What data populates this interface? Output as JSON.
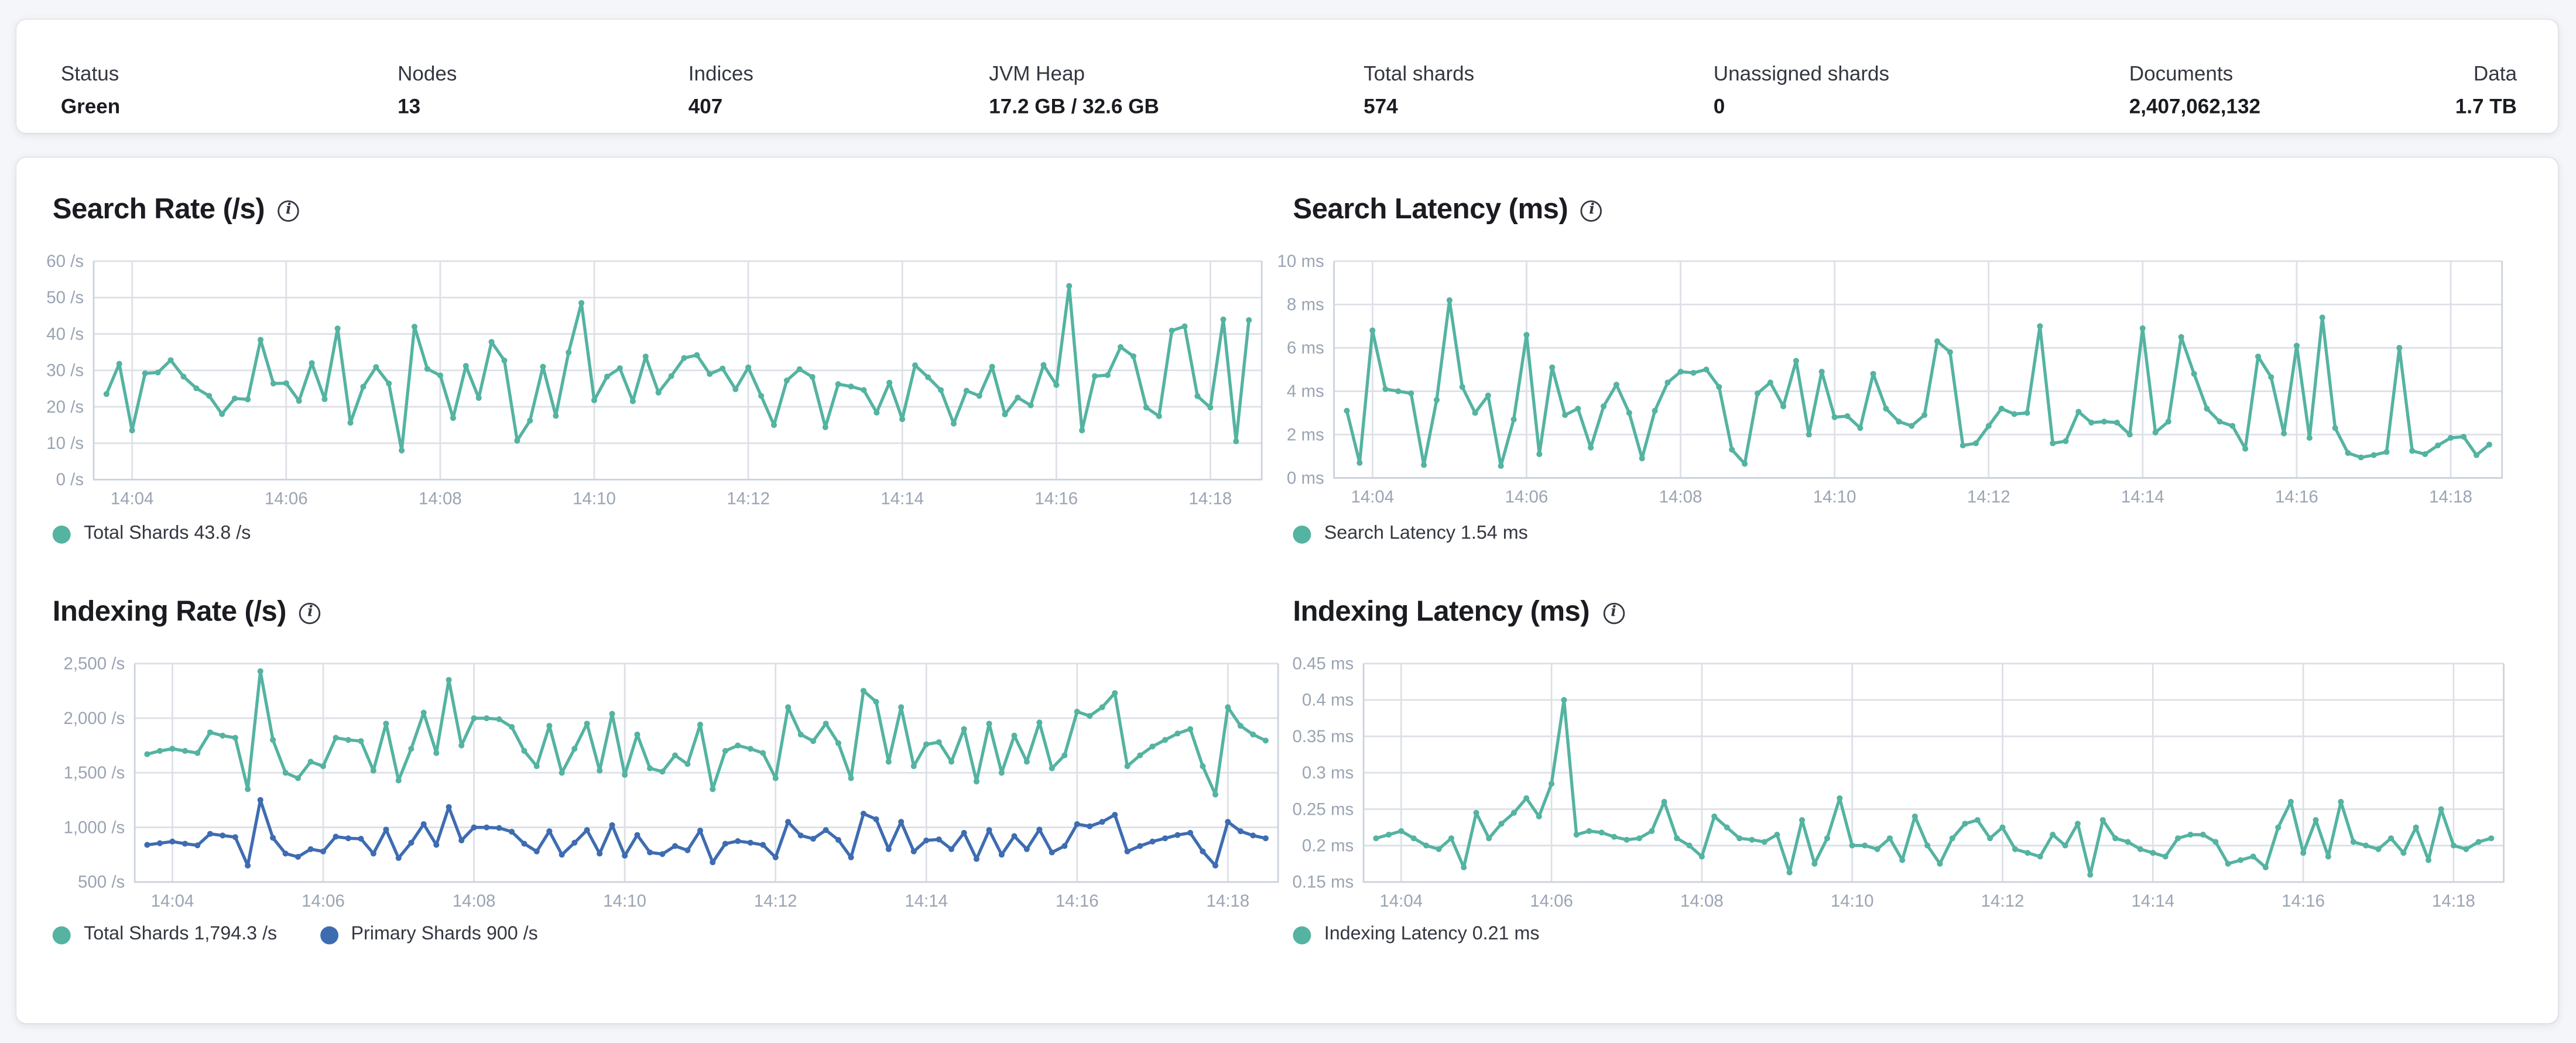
{
  "overview": {
    "stats": [
      {
        "label": "Status",
        "value": "Green"
      },
      {
        "label": "Nodes",
        "value": "13"
      },
      {
        "label": "Indices",
        "value": "407"
      },
      {
        "label": "JVM Heap",
        "value": "17.2 GB / 32.6 GB"
      },
      {
        "label": "Total shards",
        "value": "574"
      },
      {
        "label": "Unassigned shards",
        "value": "0"
      },
      {
        "label": "Documents",
        "value": "2,407,062,132"
      },
      {
        "label": "Data",
        "value": "1.7 TB"
      }
    ],
    "status_color": "#3aa795"
  },
  "colors": {
    "teal": "#54b3a1",
    "blue": "#3e6cb1",
    "grid": "#dde0e6",
    "plot_border": "#ccd3dc",
    "axis_text": "#9aa4b3"
  },
  "chart_data": [
    {
      "type": "line",
      "title": "Search Rate (/s)",
      "info_icon": "i",
      "ylabel": "/s",
      "ylim": [
        0,
        60
      ],
      "yticks": [
        {
          "v": 0,
          "label": "0 /s"
        },
        {
          "v": 10,
          "label": "10 /s"
        },
        {
          "v": 20,
          "label": "20 /s"
        },
        {
          "v": 30,
          "label": "30 /s"
        },
        {
          "v": 40,
          "label": "40 /s"
        },
        {
          "v": 50,
          "label": "50 /s"
        },
        {
          "v": 60,
          "label": "60 /s"
        }
      ],
      "x_start": "14:03:40",
      "x_interval_seconds": 10,
      "x_tick_labels": [
        "14:04",
        "14:06",
        "14:08",
        "14:10",
        "14:12",
        "14:14",
        "14:16",
        "14:18"
      ],
      "grid": true,
      "legend_position": "bottom",
      "series": [
        {
          "name": "Total Shards",
          "legend_label": "Total Shards 43.8 /s",
          "color": "#54b3a1",
          "values": [
            23.5,
            31.8,
            13.5,
            29.2,
            29.4,
            32.8,
            28.3,
            25.1,
            23.0,
            18.0,
            22.3,
            22.0,
            38.4,
            26.4,
            26.5,
            21.6,
            32.0,
            22.1,
            41.5,
            15.6,
            25.5,
            30.9,
            26.4,
            8.0,
            42.0,
            30.4,
            28.6,
            16.9,
            31.2,
            22.4,
            37.8,
            32.7,
            10.7,
            16.2,
            31.0,
            17.5,
            34.9,
            48.5,
            21.8,
            28.3,
            30.6,
            21.5,
            33.8,
            23.9,
            28.4,
            33.4,
            34.2,
            29.0,
            30.5,
            24.8,
            30.8,
            23.0,
            15.0,
            27.2,
            30.3,
            28.2,
            14.4,
            26.2,
            25.6,
            24.6,
            18.4,
            26.6,
            16.6,
            31.4,
            28.1,
            24.6,
            15.4,
            24.4,
            23.0,
            31.0,
            17.9,
            22.5,
            20.4,
            31.5,
            26.0,
            53.2,
            13.5,
            28.4,
            28.7,
            36.4,
            33.9,
            19.8,
            17.4,
            40.9,
            42.1,
            22.9,
            19.8,
            44.0,
            10.5,
            43.8
          ]
        }
      ]
    },
    {
      "type": "line",
      "title": "Search Latency (ms)",
      "info_icon": "i",
      "ylabel": "ms",
      "ylim": [
        0,
        10
      ],
      "yticks": [
        {
          "v": 0,
          "label": "0 ms"
        },
        {
          "v": 2,
          "label": "2 ms"
        },
        {
          "v": 4,
          "label": "4 ms"
        },
        {
          "v": 6,
          "label": "6 ms"
        },
        {
          "v": 8,
          "label": "8 ms"
        },
        {
          "v": 10,
          "label": "10 ms"
        }
      ],
      "x_start": "14:03:40",
      "x_interval_seconds": 10,
      "x_tick_labels": [
        "14:04",
        "14:06",
        "14:08",
        "14:10",
        "14:12",
        "14:14",
        "14:16",
        "14:18"
      ],
      "grid": true,
      "legend_position": "bottom",
      "series": [
        {
          "name": "Search Latency",
          "legend_label": "Search Latency 1.54 ms",
          "color": "#54b3a1",
          "values": [
            3.1,
            0.7,
            6.8,
            4.1,
            4.0,
            3.9,
            0.6,
            3.6,
            8.2,
            4.2,
            3.0,
            3.8,
            0.55,
            2.7,
            6.6,
            1.1,
            5.1,
            2.9,
            3.2,
            1.4,
            3.3,
            4.3,
            3.0,
            0.9,
            3.1,
            4.4,
            4.9,
            4.85,
            5.0,
            4.2,
            1.3,
            0.65,
            3.9,
            4.4,
            3.3,
            5.4,
            2.0,
            4.9,
            2.8,
            2.85,
            2.3,
            4.8,
            3.2,
            2.6,
            2.4,
            2.9,
            6.3,
            5.8,
            1.5,
            1.6,
            2.4,
            3.2,
            2.95,
            3.0,
            7.0,
            1.6,
            1.7,
            3.05,
            2.55,
            2.6,
            2.55,
            2.0,
            6.9,
            2.1,
            2.6,
            6.5,
            4.8,
            3.2,
            2.6,
            2.4,
            1.35,
            5.6,
            4.65,
            2.05,
            6.1,
            1.85,
            7.4,
            2.3,
            1.15,
            0.95,
            1.05,
            1.2,
            6.0,
            1.25,
            1.1,
            1.5,
            1.85,
            1.9,
            1.05,
            1.54
          ]
        }
      ]
    },
    {
      "type": "line",
      "title": "Indexing Rate (/s)",
      "info_icon": "i",
      "ylabel": "/s",
      "ylim": [
        500,
        2500
      ],
      "yticks": [
        {
          "v": 500,
          "label": "500 /s"
        },
        {
          "v": 1000,
          "label": "1,000 /s"
        },
        {
          "v": 1500,
          "label": "1,500 /s"
        },
        {
          "v": 2000,
          "label": "2,000 /s"
        },
        {
          "v": 2500,
          "label": "2,500 /s"
        }
      ],
      "x_start": "14:03:40",
      "x_interval_seconds": 10,
      "x_tick_labels": [
        "14:04",
        "14:06",
        "14:08",
        "14:10",
        "14:12",
        "14:14",
        "14:16",
        "14:18"
      ],
      "grid": true,
      "legend_position": "bottom",
      "series": [
        {
          "name": "Total Shards",
          "legend_label": "Total Shards 1,794.3 /s",
          "color": "#54b3a1",
          "values": [
            1670,
            1700,
            1720,
            1700,
            1680,
            1870,
            1840,
            1820,
            1350,
            2430,
            1800,
            1500,
            1450,
            1600,
            1560,
            1820,
            1800,
            1790,
            1520,
            1950,
            1430,
            1720,
            2050,
            1680,
            2350,
            1750,
            2000,
            2000,
            1990,
            1920,
            1700,
            1560,
            1930,
            1500,
            1720,
            1950,
            1520,
            2040,
            1480,
            1850,
            1540,
            1510,
            1660,
            1580,
            1940,
            1350,
            1700,
            1750,
            1720,
            1680,
            1450,
            2100,
            1850,
            1790,
            1950,
            1770,
            1450,
            2250,
            2150,
            1600,
            2100,
            1560,
            1760,
            1780,
            1600,
            1900,
            1420,
            1950,
            1500,
            1840,
            1600,
            1960,
            1540,
            1660,
            2060,
            2020,
            2100,
            2230,
            1560,
            1660,
            1740,
            1800,
            1860,
            1900,
            1560,
            1300,
            2100,
            1930,
            1850,
            1794.3
          ]
        },
        {
          "name": "Primary Shards",
          "legend_label": "Primary Shards 900 /s",
          "color": "#3e6cb1",
          "values": [
            840,
            855,
            870,
            850,
            835,
            940,
            925,
            910,
            650,
            1250,
            905,
            760,
            730,
            800,
            780,
            915,
            900,
            895,
            760,
            980,
            720,
            860,
            1030,
            840,
            1185,
            880,
            1000,
            1000,
            995,
            960,
            850,
            780,
            965,
            750,
            860,
            975,
            760,
            1020,
            740,
            930,
            770,
            755,
            830,
            790,
            970,
            680,
            850,
            875,
            860,
            840,
            725,
            1050,
            925,
            895,
            975,
            885,
            725,
            1125,
            1075,
            800,
            1050,
            780,
            880,
            890,
            800,
            950,
            710,
            975,
            750,
            920,
            800,
            980,
            770,
            830,
            1030,
            1010,
            1050,
            1115,
            780,
            830,
            870,
            900,
            930,
            950,
            780,
            650,
            1050,
            965,
            925,
            900
          ]
        }
      ]
    },
    {
      "type": "line",
      "title": "Indexing Latency (ms)",
      "info_icon": "i",
      "ylabel": "ms",
      "ylim": [
        0.15,
        0.45
      ],
      "yticks": [
        {
          "v": 0.15,
          "label": "0.15 ms"
        },
        {
          "v": 0.2,
          "label": "0.2 ms"
        },
        {
          "v": 0.25,
          "label": "0.25 ms"
        },
        {
          "v": 0.3,
          "label": "0.3 ms"
        },
        {
          "v": 0.35,
          "label": "0.35 ms"
        },
        {
          "v": 0.4,
          "label": "0.4 ms"
        },
        {
          "v": 0.45,
          "label": "0.45 ms"
        }
      ],
      "x_start": "14:03:40",
      "x_interval_seconds": 10,
      "x_tick_labels": [
        "14:04",
        "14:06",
        "14:08",
        "14:10",
        "14:12",
        "14:14",
        "14:16",
        "14:18"
      ],
      "grid": true,
      "legend_position": "bottom",
      "series": [
        {
          "name": "Indexing Latency",
          "legend_label": "Indexing Latency 0.21 ms",
          "color": "#54b3a1",
          "values": [
            0.21,
            0.215,
            0.22,
            0.21,
            0.2,
            0.195,
            0.21,
            0.17,
            0.245,
            0.21,
            0.23,
            0.245,
            0.265,
            0.24,
            0.285,
            0.4,
            0.215,
            0.22,
            0.218,
            0.212,
            0.208,
            0.21,
            0.22,
            0.26,
            0.21,
            0.2,
            0.185,
            0.24,
            0.225,
            0.21,
            0.208,
            0.205,
            0.215,
            0.163,
            0.235,
            0.175,
            0.21,
            0.265,
            0.2,
            0.2,
            0.195,
            0.21,
            0.18,
            0.24,
            0.2,
            0.175,
            0.21,
            0.23,
            0.235,
            0.21,
            0.225,
            0.195,
            0.19,
            0.185,
            0.215,
            0.2,
            0.23,
            0.16,
            0.235,
            0.21,
            0.205,
            0.195,
            0.19,
            0.185,
            0.21,
            0.215,
            0.215,
            0.205,
            0.175,
            0.18,
            0.185,
            0.17,
            0.225,
            0.26,
            0.19,
            0.235,
            0.185,
            0.26,
            0.205,
            0.2,
            0.195,
            0.21,
            0.19,
            0.225,
            0.18,
            0.25,
            0.2,
            0.195,
            0.205,
            0.21
          ]
        }
      ]
    }
  ]
}
